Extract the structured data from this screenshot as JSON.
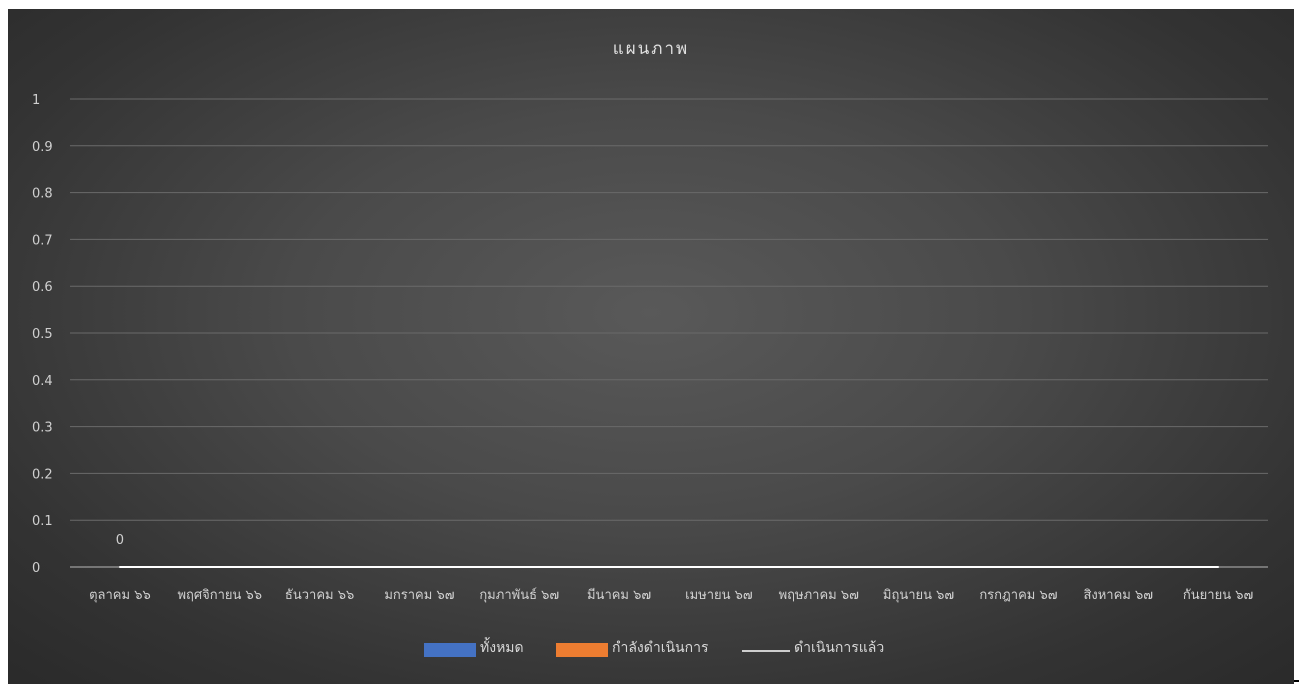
{
  "chart_data": {
    "type": "line",
    "title": "แผนภาพ",
    "xlabel": "",
    "ylabel": "",
    "categories": [
      "ตุลาคม ๖๖",
      "พฤศจิกายน ๖๖",
      "ธันวาคม ๖๖",
      "มกราคม ๖๗",
      "กุมภาพันธ์ ๖๗",
      "มีนาคม ๖๗",
      "เมษายน ๖๗",
      "พฤษภาคม ๖๗",
      "มิถุนายน ๖๗",
      "กรกฎาคม ๖๗",
      "สิงหาคม ๖๗",
      "กันยายน ๖๗"
    ],
    "yticks": [
      "0",
      "0.1",
      "0.2",
      "0.3",
      "0.4",
      "0.5",
      "0.6",
      "0.7",
      "0.8",
      "0.9",
      "1"
    ],
    "ylim": [
      0,
      1
    ],
    "grid": true,
    "legend_position": "bottom",
    "series": [
      {
        "name": "ทั้งหมด",
        "kind": "bar",
        "color": "#4472c4",
        "values": [
          0,
          0,
          0,
          0,
          0,
          0,
          0,
          0,
          0,
          0,
          0,
          0
        ]
      },
      {
        "name": "กำลังดำเนินการ",
        "kind": "bar",
        "color": "#ed7d31",
        "values": [
          0,
          0,
          0,
          0,
          0,
          0,
          0,
          0,
          0,
          0,
          0,
          0
        ]
      },
      {
        "name": "ดำเนินการแล้ว",
        "kind": "line",
        "color": "#ffffff",
        "values": [
          0,
          0,
          0,
          0,
          0,
          0,
          0,
          0,
          0,
          0,
          0,
          0
        ]
      }
    ],
    "data_labels": [
      {
        "category": "ตุลาคม ๖๖",
        "text": "0"
      }
    ]
  }
}
